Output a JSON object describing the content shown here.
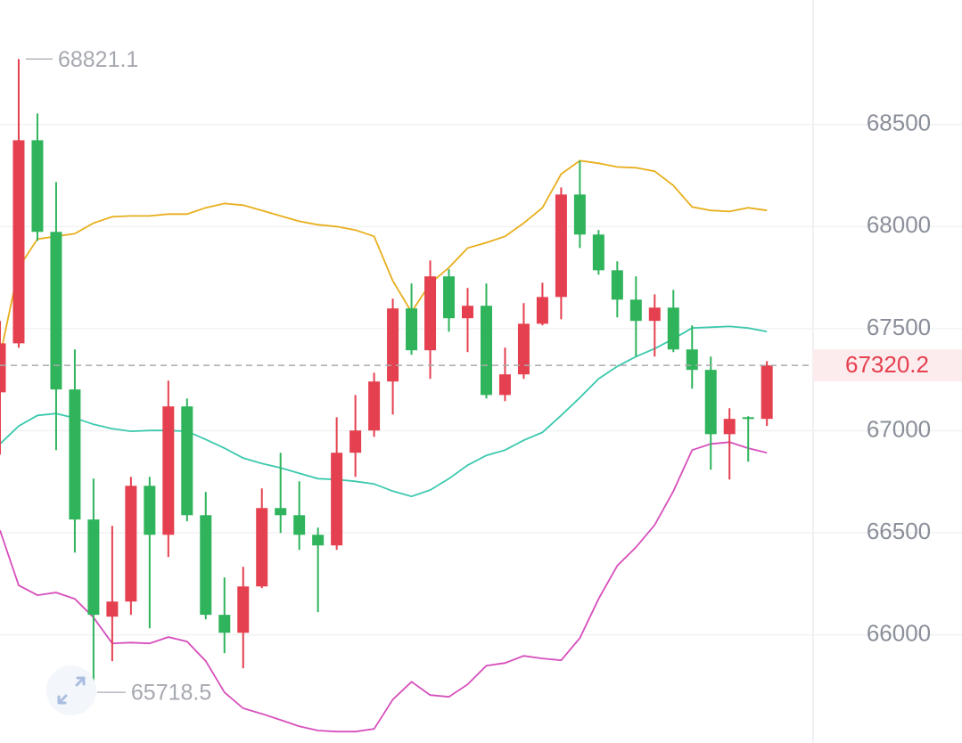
{
  "chart_data": {
    "type": "candlestick",
    "up_color": "#e5404f",
    "down_color": "#2fb45c",
    "ylim": [
      65470,
      69110
    ],
    "yticks": [
      66000,
      66500,
      67000,
      67500,
      68000,
      68500
    ],
    "grid": true,
    "open": [
      67188,
      67428,
      68423,
      67974,
      67202,
      66565,
      66089,
      66163,
      66730,
      66490,
      67119,
      66586,
      66098,
      66010,
      66237,
      66621,
      66586,
      66490,
      66438,
      66892,
      67001,
      67241,
      67599,
      67394,
      67756,
      67551,
      67612,
      67175,
      67276,
      67524,
      67655,
      68157,
      67961,
      67786,
      67642,
      67538,
      67603,
      67398,
      67298,
      66983,
      67066,
      67058
    ],
    "high": [
      67538,
      68821.1,
      68554,
      68218,
      67398,
      66765,
      66534,
      66774,
      66774,
      67245,
      67158,
      66700,
      66281,
      66333,
      66717,
      66892,
      66752,
      66525,
      67066,
      67175,
      67284,
      67647,
      67721,
      67834,
      67791,
      67699,
      67721,
      67407,
      67625,
      67725,
      68192,
      68323,
      67983,
      67830,
      67756,
      67668,
      67690,
      67516,
      67363,
      67110,
      67071,
      67341
    ],
    "low": [
      66883,
      67407,
      67930,
      66905,
      66403,
      65718.5,
      65871,
      66098,
      66032,
      66381,
      66556,
      66076,
      65910,
      65836,
      66229,
      66499,
      66416,
      66111,
      66416,
      66774,
      66970,
      67079,
      67372,
      67254,
      67485,
      67385,
      67158,
      67145,
      67254,
      67516,
      67546,
      67895,
      67764,
      67555,
      67363,
      67363,
      67385,
      67206,
      66809,
      66761,
      66848,
      67023
    ],
    "close": [
      67428,
      68423,
      67974,
      67202,
      66565,
      66098,
      66163,
      66730,
      66490,
      67119,
      66586,
      66098,
      66010,
      66237,
      66621,
      66586,
      66490,
      66438,
      66892,
      67001,
      67241,
      67599,
      67394,
      67756,
      67551,
      67612,
      67175,
      67276,
      67524,
      67655,
      68157,
      67961,
      67786,
      67642,
      67538,
      67603,
      67398,
      67298,
      66983,
      67058,
      67058,
      67320.2
    ],
    "lines": [
      {
        "color": "#e8ae1c",
        "values": [
          67363,
          67799,
          67939,
          67952,
          67965,
          68017,
          68048,
          68052,
          68052,
          68061,
          68061,
          68092,
          68113,
          68105,
          68079,
          68052,
          68026,
          68009,
          68000,
          67983,
          67952,
          67734,
          67581,
          67721,
          67799,
          67895,
          67921,
          67952,
          68017,
          68092,
          68257,
          68323,
          68310,
          68292,
          68288,
          68271,
          68201,
          68096,
          68079,
          68074,
          68092,
          68079
        ]
      },
      {
        "color": "#3cc9ae",
        "values": [
          66935,
          67023,
          67075,
          67084,
          67062,
          67031,
          67010,
          66997,
          67001,
          67001,
          66997,
          66957,
          66914,
          66866,
          66839,
          66818,
          66791,
          66765,
          66761,
          66752,
          66739,
          66704,
          66678,
          66709,
          66765,
          66831,
          66879,
          66905,
          66953,
          66992,
          67075,
          67162,
          67254,
          67315,
          67363,
          67402,
          67450,
          67503,
          67507,
          67511,
          67503,
          67485
        ]
      },
      {
        "color": "#d64fbc",
        "values": [
          66512,
          66242,
          66194,
          66207,
          66176,
          66085,
          65958,
          65962,
          65958,
          65989,
          65967,
          65871,
          65718,
          65640,
          65613,
          65583,
          65552,
          65531,
          65526,
          65526,
          65539,
          65683,
          65770,
          65705,
          65696,
          65757,
          65849,
          65862,
          65897,
          65884,
          65875,
          65984,
          66176,
          66338,
          66429,
          66538,
          66704,
          66905,
          66935,
          66944,
          66914,
          66892
        ]
      }
    ]
  }
}
